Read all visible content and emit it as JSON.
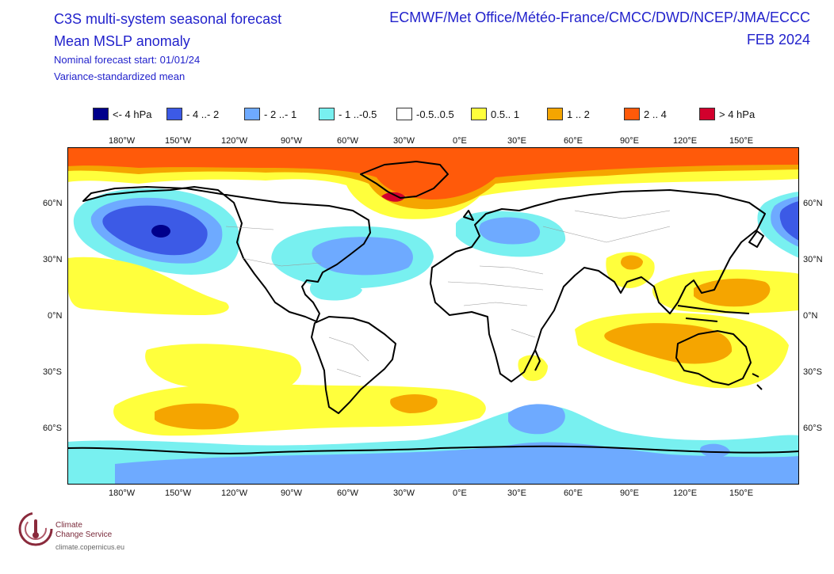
{
  "titles": {
    "line1": "C3S multi-system seasonal forecast",
    "line2": "Mean MSLP anomaly",
    "line3": "Nominal forecast start: 01/01/24",
    "line4": "Variance-standardized mean",
    "centres": "ECMWF/Met Office/Météo-France/CMCC/DWD/NCEP/JMA/ECCC",
    "period": "FEB 2024"
  },
  "legend": [
    {
      "label": "<- 4 hPa",
      "color": "#00008b"
    },
    {
      "label": "- 4 ..- 2",
      "color": "#3c5ae6"
    },
    {
      "label": "- 2 ..- 1",
      "color": "#6eaaff"
    },
    {
      "label": "- 1 ..-0.5",
      "color": "#78f0f0"
    },
    {
      "label": "-0.5..0.5",
      "color": "#ffffff"
    },
    {
      "label": "0.5.. 1",
      "color": "#ffff3c"
    },
    {
      "label": "1 .. 2",
      "color": "#f5a500"
    },
    {
      "label": "2 .. 4",
      "color": "#ff5a0a"
    },
    {
      "label": ">  4 hPa",
      "color": "#d2002d"
    }
  ],
  "axes": {
    "lon_labels": [
      "180°W",
      "150°W",
      "120°W",
      "90°W",
      "60°W",
      "30°W",
      "0°E",
      "30°E",
      "60°E",
      "90°E",
      "120°E",
      "150°E"
    ],
    "lat_labels": [
      "60°N",
      "30°N",
      "0°N",
      "30°S",
      "60°S"
    ]
  },
  "logo": {
    "name_line1": "Climate",
    "name_line2": "Change Service",
    "url": "climate.copernicus.eu"
  }
}
